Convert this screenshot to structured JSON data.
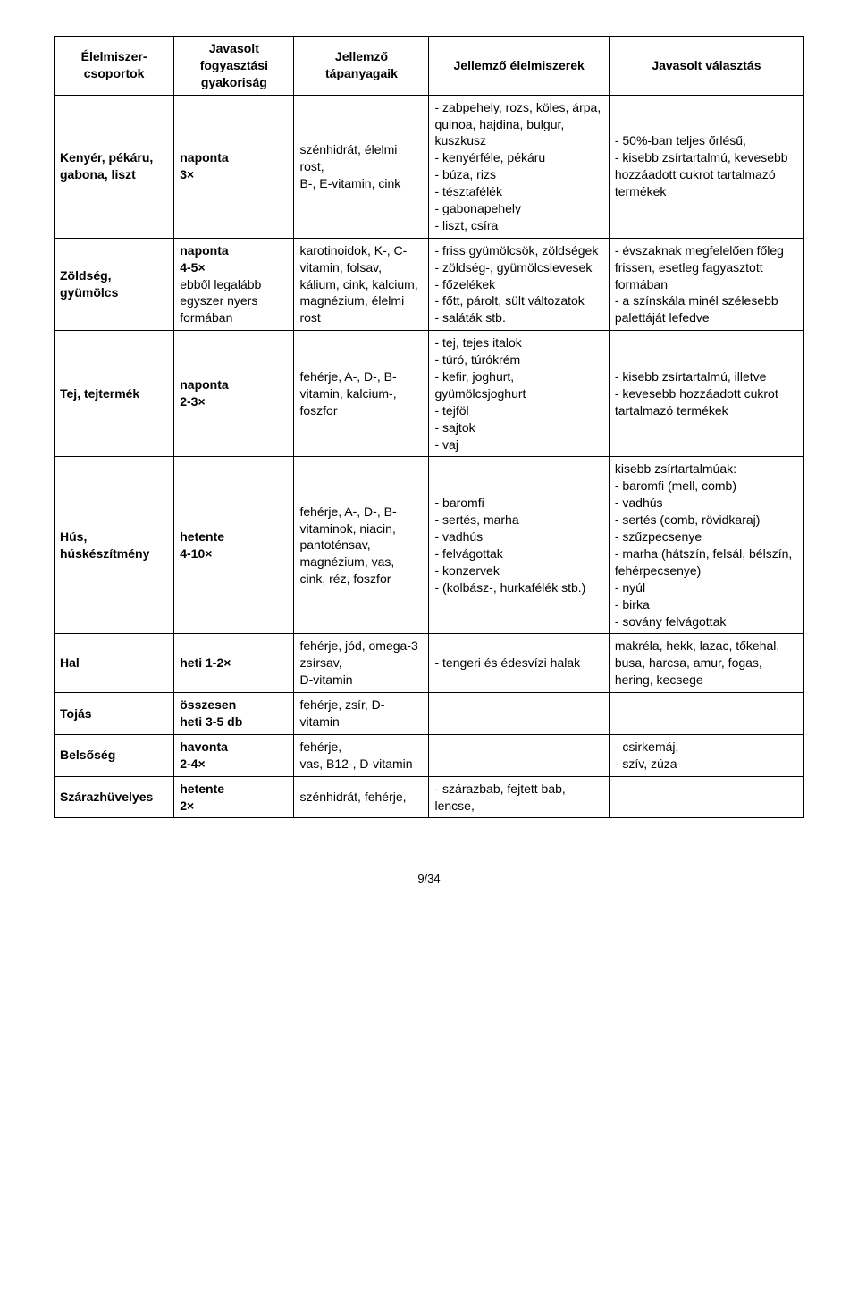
{
  "headers": [
    "Élelmiszer-csoportok",
    "Javasolt fogyasztási gyakoriság",
    "Jellemző tápanyagaik",
    "Jellemző élelmiszerek",
    "Javasolt választás"
  ],
  "rows": [
    {
      "group": "Kenyér, pékáru, gabona, liszt",
      "freq_html": "<span class=\"bold\">naponta<br>3×</span>",
      "nutr": "szénhidrát, élelmi rost,\nB-, E-vitamin, cink",
      "foods": "- zabpehely, rozs, köles, árpa, quinoa, hajdina, bulgur, kuszkusz\n- kenyérféle, pékáru\n- búza, rizs\n- tésztafélék\n- gabonapehely\n- liszt, csíra",
      "rec": "- 50%-ban teljes őrlésű,\n- kisebb zsírtartalmú, kevesebb hozzáadott cukrot tartalmazó termékek"
    },
    {
      "group": "Zöldség, gyümölcs",
      "freq_html": "<span class=\"bold\">naponta<br>4-5×</span><br>ebből legalább egyszer nyers formában",
      "nutr": "karotinoidok, K-, C-vitamin, folsav, kálium, cink, kalcium, magnézium, élelmi rost",
      "foods": "- friss gyümölcsök, zöldségek\n- zöldség-, gyümölcslevesek\n- főzelékek\n- főtt, párolt, sült változatok\n- saláták stb.",
      "rec": "- évszaknak megfelelően főleg frissen, esetleg fagyasztott formában\n- a színskála minél szélesebb palettáját lefedve"
    },
    {
      "group": "Tej, tejtermék",
      "freq_html": "<span class=\"bold\">naponta<br>2-3×</span>",
      "nutr": "fehérje, A-, D-, B-vitamin, kalcium-, foszfor",
      "foods": "- tej, tejes italok\n- túró, túrókrém\n- kefir, joghurt, gyümölcsjoghurt\n- tejföl\n- sajtok\n- vaj",
      "rec": "- kisebb zsírtartalmú, illetve\n- kevesebb hozzáadott cukrot tartalmazó termékek"
    },
    {
      "group": "Hús, húskészítmény",
      "freq_html": "<span class=\"bold\">hetente<br>4-10×</span>",
      "nutr": "fehérje, A-, D-, B-vitaminok, niacin, pantoténsav, magnézium, vas, cink, réz, foszfor",
      "foods": "- baromfi\n- sertés, marha\n- vadhús\n- felvágottak\n- konzervek\n- (kolbász-, hurkafélék stb.)",
      "rec": "kisebb zsírtartalmúak:\n- baromfi (mell, comb)\n- vadhús\n- sertés (comb, rövidkaraj)\n- szűzpecsenye\n- marha (hátszín, felsál, bélszín, fehérpecsenye)\n- nyúl\n- birka\n- sovány felvágottak"
    },
    {
      "group": "Hal",
      "freq_html": "<span class=\"bold\">heti 1-2×</span>",
      "nutr": "fehérje, jód, omega-3 zsírsav,\nD-vitamin",
      "foods": "- tengeri és édesvízi halak",
      "rec": "makréla, hekk, lazac, tőkehal, busa, harcsa, amur, fogas, hering, kecsege"
    },
    {
      "group": "Tojás",
      "freq_html": "<span class=\"bold\">összesen<br>heti 3-5 db</span>",
      "nutr": "fehérje, zsír, D-vitamin",
      "foods": "",
      "rec": ""
    },
    {
      "group": "Belsőség",
      "freq_html": "<span class=\"bold\">havonta<br>2-4×</span>",
      "nutr": "fehérje,\nvas, B12-, D-vitamin",
      "foods": "",
      "rec": "- csirkemáj,\n- szív, zúza"
    },
    {
      "group": "Szárazhüvelyes",
      "freq_html": "<span class=\"bold\">hetente<br>2×</span>",
      "nutr": "szénhidrát, fehérje,",
      "foods": "- szárazbab, fejtett bab, lencse,",
      "rec": ""
    }
  ],
  "pageNumber": "9/34"
}
